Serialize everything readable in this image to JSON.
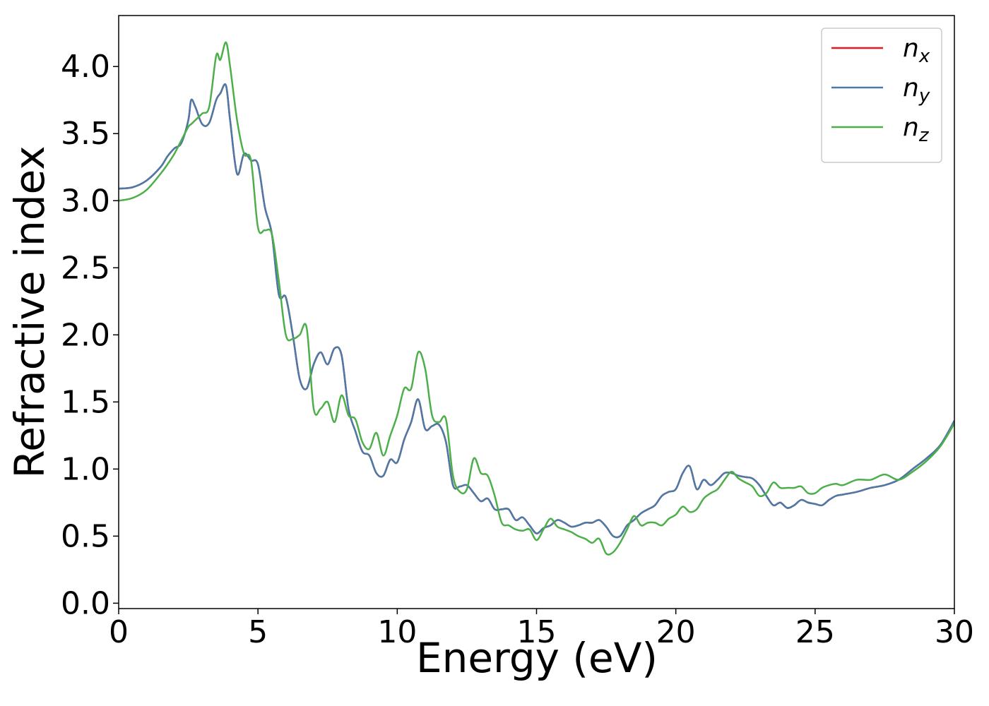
{
  "chart_data": {
    "type": "line",
    "xlabel": "Energy (eV)",
    "ylabel": "Refractive index",
    "x": [
      0,
      0.5,
      1,
      1.5,
      1.75,
      2,
      2.25,
      2.5,
      2.6,
      2.75,
      3,
      3.25,
      3.5,
      3.65,
      3.85,
      4,
      4.25,
      4.5,
      4.75,
      5,
      5.25,
      5.5,
      5.75,
      6,
      6.25,
      6.5,
      6.75,
      7,
      7.25,
      7.5,
      7.75,
      8,
      8.25,
      8.5,
      8.75,
      9,
      9.25,
      9.5,
      9.75,
      10,
      10.25,
      10.5,
      10.75,
      11,
      11.25,
      11.5,
      11.75,
      12,
      12.25,
      12.5,
      12.75,
      13,
      13.25,
      13.5,
      13.75,
      14,
      14.25,
      14.5,
      14.75,
      15,
      15.25,
      15.5,
      15.75,
      16,
      16.25,
      16.5,
      16.75,
      17,
      17.25,
      17.5,
      17.75,
      18,
      18.25,
      18.5,
      18.75,
      19,
      19.25,
      19.5,
      19.75,
      20,
      20.25,
      20.5,
      20.75,
      21,
      21.25,
      21.5,
      21.75,
      22,
      22.25,
      22.5,
      22.75,
      23,
      23.25,
      23.5,
      23.75,
      24,
      24.25,
      24.5,
      24.75,
      25,
      25.25,
      25.5,
      25.75,
      26,
      26.5,
      27,
      27.5,
      28,
      28.5,
      29,
      29.5,
      30
    ],
    "series": [
      {
        "name": "nx",
        "color": "#e41a1c",
        "values": [
          3.09,
          3.1,
          3.15,
          3.25,
          3.33,
          3.39,
          3.43,
          3.6,
          3.75,
          3.7,
          3.57,
          3.58,
          3.75,
          3.8,
          3.86,
          3.6,
          3.2,
          3.35,
          3.3,
          3.27,
          2.95,
          2.75,
          2.3,
          2.28,
          2.0,
          1.67,
          1.6,
          1.78,
          1.87,
          1.78,
          1.9,
          1.85,
          1.45,
          1.28,
          1.13,
          1.1,
          0.97,
          0.95,
          1.07,
          1.05,
          1.22,
          1.35,
          1.52,
          1.3,
          1.32,
          1.33,
          1.2,
          0.88,
          0.87,
          0.88,
          0.82,
          0.76,
          0.78,
          0.7,
          0.7,
          0.7,
          0.62,
          0.64,
          0.58,
          0.52,
          0.56,
          0.58,
          0.62,
          0.6,
          0.57,
          0.58,
          0.6,
          0.6,
          0.62,
          0.57,
          0.5,
          0.5,
          0.58,
          0.62,
          0.67,
          0.7,
          0.73,
          0.8,
          0.83,
          0.85,
          0.97,
          1.02,
          0.85,
          0.92,
          0.88,
          0.92,
          0.97,
          0.97,
          0.95,
          0.94,
          0.93,
          0.88,
          0.8,
          0.73,
          0.75,
          0.71,
          0.73,
          0.77,
          0.75,
          0.74,
          0.73,
          0.77,
          0.8,
          0.81,
          0.83,
          0.86,
          0.88,
          0.92,
          1.0,
          1.08,
          1.18,
          1.36
        ]
      },
      {
        "name": "ny",
        "color": "#4a7aa8",
        "values": [
          3.09,
          3.1,
          3.15,
          3.25,
          3.33,
          3.39,
          3.43,
          3.6,
          3.75,
          3.7,
          3.57,
          3.58,
          3.75,
          3.8,
          3.86,
          3.6,
          3.2,
          3.35,
          3.3,
          3.27,
          2.95,
          2.75,
          2.3,
          2.28,
          2.0,
          1.67,
          1.6,
          1.78,
          1.87,
          1.78,
          1.9,
          1.85,
          1.45,
          1.28,
          1.13,
          1.1,
          0.97,
          0.95,
          1.07,
          1.05,
          1.22,
          1.35,
          1.52,
          1.3,
          1.32,
          1.33,
          1.2,
          0.88,
          0.87,
          0.88,
          0.82,
          0.76,
          0.78,
          0.7,
          0.7,
          0.7,
          0.62,
          0.64,
          0.58,
          0.52,
          0.56,
          0.58,
          0.62,
          0.6,
          0.57,
          0.58,
          0.6,
          0.6,
          0.62,
          0.57,
          0.5,
          0.5,
          0.58,
          0.62,
          0.67,
          0.7,
          0.73,
          0.8,
          0.83,
          0.85,
          0.97,
          1.02,
          0.85,
          0.92,
          0.88,
          0.92,
          0.97,
          0.97,
          0.95,
          0.94,
          0.93,
          0.88,
          0.8,
          0.73,
          0.75,
          0.71,
          0.73,
          0.77,
          0.75,
          0.74,
          0.73,
          0.77,
          0.8,
          0.81,
          0.83,
          0.86,
          0.88,
          0.92,
          1.0,
          1.08,
          1.18,
          1.36
        ]
      },
      {
        "name": "nz",
        "color": "#4daf4a",
        "values": [
          3.0,
          3.02,
          3.08,
          3.2,
          3.27,
          3.35,
          3.45,
          3.55,
          3.57,
          3.6,
          3.65,
          3.7,
          4.08,
          4.05,
          4.18,
          4.0,
          3.6,
          3.35,
          3.3,
          2.8,
          2.78,
          2.75,
          2.4,
          2.0,
          1.97,
          2.0,
          2.05,
          1.45,
          1.45,
          1.5,
          1.35,
          1.55,
          1.4,
          1.37,
          1.2,
          1.15,
          1.27,
          1.1,
          1.25,
          1.4,
          1.6,
          1.6,
          1.87,
          1.75,
          1.4,
          1.35,
          1.37,
          0.95,
          0.83,
          0.85,
          1.08,
          0.97,
          0.95,
          0.8,
          0.6,
          0.58,
          0.55,
          0.54,
          0.55,
          0.47,
          0.55,
          0.63,
          0.57,
          0.55,
          0.53,
          0.5,
          0.48,
          0.45,
          0.48,
          0.37,
          0.38,
          0.45,
          0.55,
          0.65,
          0.58,
          0.6,
          0.6,
          0.58,
          0.63,
          0.66,
          0.72,
          0.68,
          0.7,
          0.78,
          0.82,
          0.85,
          0.92,
          0.98,
          0.93,
          0.9,
          0.87,
          0.8,
          0.82,
          0.9,
          0.86,
          0.86,
          0.86,
          0.87,
          0.82,
          0.82,
          0.86,
          0.88,
          0.89,
          0.88,
          0.92,
          0.92,
          0.96,
          0.92,
          0.98,
          1.06,
          1.17,
          1.34
        ]
      }
    ],
    "xlim": [
      0,
      30
    ],
    "ylim": [
      -0.04,
      4.38
    ],
    "xticks": [
      0,
      5,
      10,
      15,
      20,
      25,
      30
    ],
    "yticks": [
      {
        "value": 0,
        "label": "0.0"
      },
      0.5,
      {
        "value": 1,
        "label": "1.0"
      },
      1.5,
      {
        "value": 2,
        "label": "2.0"
      },
      2.5,
      {
        "value": 3,
        "label": "3.0"
      },
      3.5,
      {
        "value": 4,
        "label": "4.0"
      }
    ],
    "legend": "upper right",
    "grid": false
  }
}
